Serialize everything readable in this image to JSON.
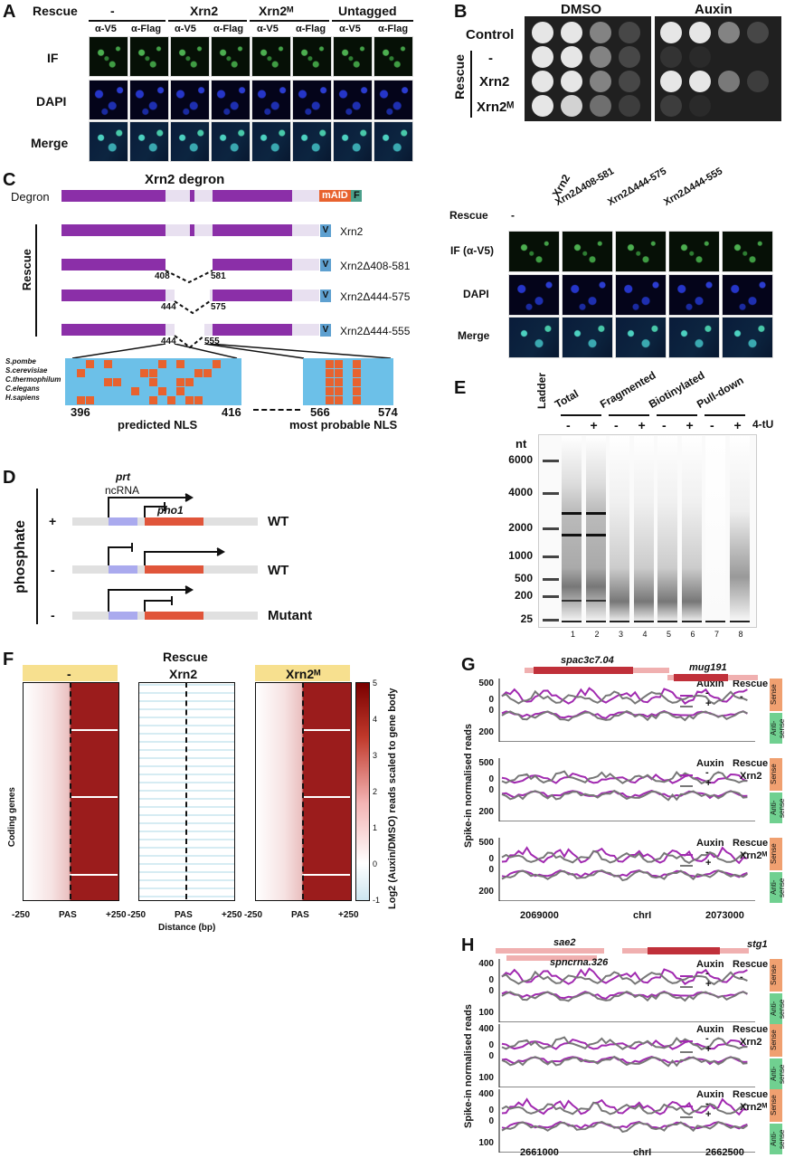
{
  "panel_labels": {
    "A": "A",
    "B": "B",
    "C": "C",
    "D": "D",
    "E": "E",
    "F": "F",
    "G": "G",
    "H": "H"
  },
  "panelA": {
    "rescue": "Rescue",
    "col_groups": [
      "-",
      "Xrn2",
      "Xrn2ᴹ",
      "Untagged"
    ],
    "antibodies": [
      "α-V5",
      "α-Flag",
      "α-V5",
      "α-Flag",
      "α-V5",
      "α-Flag",
      "α-V5",
      "α-Flag"
    ],
    "rows": [
      "IF",
      "DAPI",
      "Merge"
    ]
  },
  "panelB": {
    "cols": [
      "DMSO",
      "Auxin"
    ],
    "rows": [
      "Control",
      "-",
      "Xrn2",
      "Xrn2ᴹ"
    ],
    "rescue": "Rescue"
  },
  "panelC": {
    "title": "Xrn2 degron",
    "degron": "Degron",
    "maid": "mAID",
    "f": "F",
    "v": "V",
    "rescue": "Rescue",
    "constructs": [
      "Xrn2",
      "Xrn2Δ408-581",
      "Xrn2Δ444-575",
      "Xrn2Δ444-555"
    ],
    "breaks": [
      [
        "408",
        "581"
      ],
      [
        "444",
        "575"
      ],
      [
        "444",
        "555"
      ]
    ],
    "species": [
      "S.pombe",
      "S.cerevisiae",
      "C.thermophilum",
      "C.elegans",
      "H.sapiens"
    ],
    "pos": [
      "396",
      "416",
      "566",
      "574"
    ],
    "nls1": "predicted NLS",
    "nls2": "most probable NLS",
    "if_rescue": "Rescue",
    "if_cols": [
      "-",
      "Xrn2",
      "Xrn2Δ408-581",
      "Xrn2Δ444-575",
      "Xrn2Δ444-555"
    ],
    "if_rows": [
      "IF (α-V5)",
      "DAPI",
      "Merge"
    ]
  },
  "panelD": {
    "prt": "prt",
    "ncrna": "ncRNA",
    "pho1": "pho1",
    "phosphate": "phosphate",
    "signs": [
      "+",
      "-",
      "-"
    ],
    "labels": [
      "WT",
      "WT",
      "Mutant"
    ]
  },
  "panelE": {
    "ladder": "Ladder",
    "groups": [
      "Total",
      "Fragmented",
      "Biotinylated",
      "Pull-down"
    ],
    "signs": [
      "-",
      "+",
      "-",
      "+",
      "-",
      "+",
      "-",
      "+"
    ],
    "tu": "4-tU",
    "nt": "nt",
    "sizes": [
      "6000",
      "4000",
      "2000",
      "1000",
      "500",
      "200",
      "25"
    ],
    "lanes": [
      "1",
      "2",
      "3",
      "4",
      "5",
      "6",
      "7",
      "8"
    ]
  },
  "panelF": {
    "rescue": "Rescue",
    "cols": [
      "-",
      "Xrn2",
      "Xrn2ᴹ"
    ],
    "ylabel": "Coding genes",
    "xticks": [
      "-250",
      "PAS",
      "+250"
    ],
    "xlabel": "Distance (bp)",
    "cbar_label": "Log2 (Auxin/DMSO) reads scaled to gene body",
    "cbar_ticks": [
      "5",
      "4",
      "3",
      "2",
      "1",
      "0",
      "-1"
    ]
  },
  "panelG": {
    "genes": [
      "spac3c7.04",
      "mug191"
    ],
    "ylabel": "Spike-in normalised reads",
    "auxin": "Auxin",
    "rescue": "Rescue",
    "rescues": [
      "-",
      "Xrn2",
      "Xrn2ᴹ"
    ],
    "aux": [
      "-",
      "+"
    ],
    "yt": [
      "500",
      "0",
      "0",
      "200"
    ],
    "xt": [
      "2069000",
      "chrI",
      "2073000"
    ],
    "sense": "Sense",
    "anti": "Anti-sense"
  },
  "panelH": {
    "genes": [
      "sae2",
      "spncrna.326",
      "stg1"
    ],
    "ylabel": "Spike-in normalised reads",
    "auxin": "Auxin",
    "rescue": "Rescue",
    "rescues": [
      "-",
      "Xrn2",
      "Xrn2ᴹ"
    ],
    "aux": [
      "-",
      "+"
    ],
    "yt": [
      "400",
      "0",
      "0",
      "100"
    ],
    "xt": [
      "2661000",
      "chrI",
      "2662500"
    ],
    "sense": "Sense",
    "anti": "Anti-sense"
  },
  "colors": {
    "purple": "#8b2fa8",
    "orange": "#e8622e",
    "green": "#4a9f8a",
    "grey": "#777777",
    "maroon": "#9b1c1c",
    "light_blue": "#a8d8e0"
  }
}
